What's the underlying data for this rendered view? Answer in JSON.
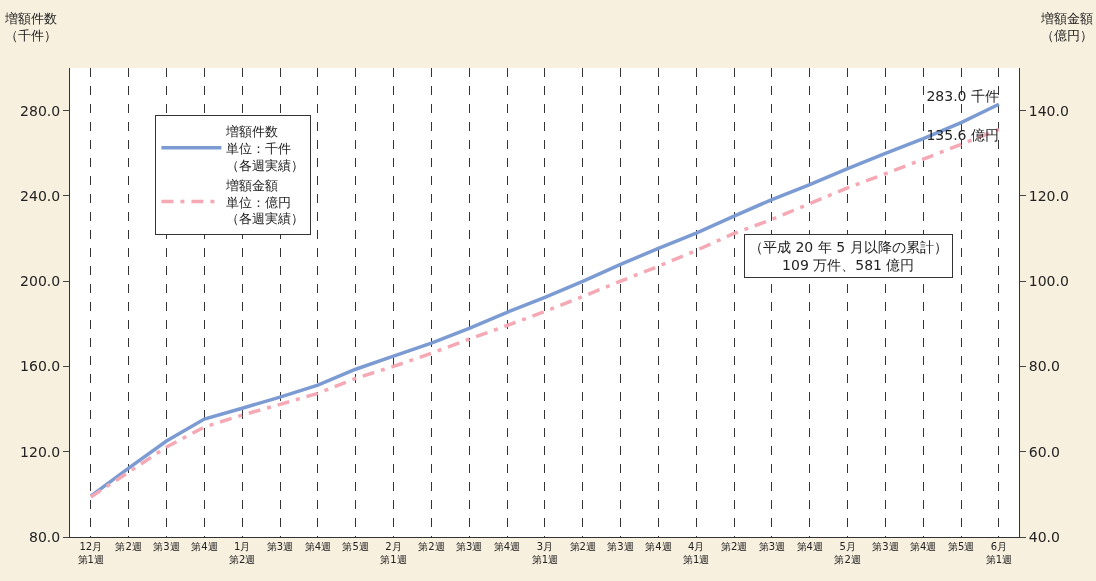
{
  "chart_data": {
    "type": "line",
    "ylabel": "増額件数（千件）",
    "y2label": "増額金額（億円）",
    "categories": [
      "12月第1週",
      "第2週",
      "第3週",
      "第4週",
      "1月第2週",
      "第3週",
      "第4週",
      "第5週",
      "2月第1週",
      "第2週",
      "第3週",
      "第4週",
      "3月第1週",
      "第2週",
      "第3週",
      "第4週",
      "4月第1週",
      "第2週",
      "第3週",
      "第4週",
      "5月第2週",
      "第3週",
      "第4週",
      "第5週",
      "6月第1週"
    ],
    "series": [
      {
        "name": "増額件数単位：千件（各週実績）",
        "color": "#7b9bd2",
        "line_style": "solid",
        "values": [
          99.2,
          112.3,
          125,
          135.3,
          140.4,
          145.6,
          151.2,
          158.7,
          164.8,
          170.9,
          177.9,
          185.4,
          192.4,
          199.9,
          207.9,
          215.4,
          222.5,
          230.5,
          238.3,
          245.3,
          252.8,
          259.9,
          266.9,
          274.4,
          283.0
        ],
        "value_labels": [
          null,
          null,
          null,
          null,
          null,
          null,
          null,
          null,
          null,
          null,
          null,
          null,
          null,
          null,
          null,
          null,
          null,
          null,
          null,
          null,
          null,
          null,
          null,
          null,
          "283.0 千件"
        ]
      },
      {
        "name": "増額金額単位：億円（各週実績）",
        "color": "#f4a9b5",
        "line_style": "dashed",
        "axis": "y2",
        "values": [
          49.4,
          55.2,
          61.1,
          65.8,
          68.6,
          71.1,
          73.7,
          77.2,
          80,
          83.1,
          86.4,
          89.6,
          92.9,
          96.4,
          100,
          103.5,
          107.2,
          111.2,
          114.5,
          118.2,
          121.9,
          125.2,
          128.6,
          132.1,
          135.6
        ],
        "value_labels": [
          null,
          null,
          null,
          null,
          null,
          null,
          null,
          null,
          null,
          null,
          null,
          null,
          null,
          null,
          null,
          null,
          null,
          null,
          null,
          null,
          null,
          null,
          null,
          null,
          "135.6 億円"
        ]
      }
    ],
    "ylim": [
      80,
      300
    ],
    "yticks": [
      {
        "value": 80,
        "label": "80.0"
      },
      {
        "value": 120,
        "label": "120.0"
      },
      {
        "value": 160,
        "label": "160.0"
      },
      {
        "value": 200,
        "label": "200.0"
      },
      {
        "value": 240,
        "label": "240.0"
      },
      {
        "value": 280,
        "label": "280.0"
      }
    ],
    "y2lim": [
      40,
      150
    ],
    "y2ticks": [
      {
        "value": 40,
        "label": "40.0"
      },
      {
        "value": 60,
        "label": "60.0"
      },
      {
        "value": 80,
        "label": "80.0"
      },
      {
        "value": 100,
        "label": "100.0"
      },
      {
        "value": 120,
        "label": "120.0"
      },
      {
        "value": 140,
        "label": "140.0"
      }
    ],
    "grid": "x",
    "legend": "top left",
    "marker": "none",
    "annotations": [
      "（平成 20 年 5 月以降の累計）\n109 万件、581 億円"
    ]
  }
}
